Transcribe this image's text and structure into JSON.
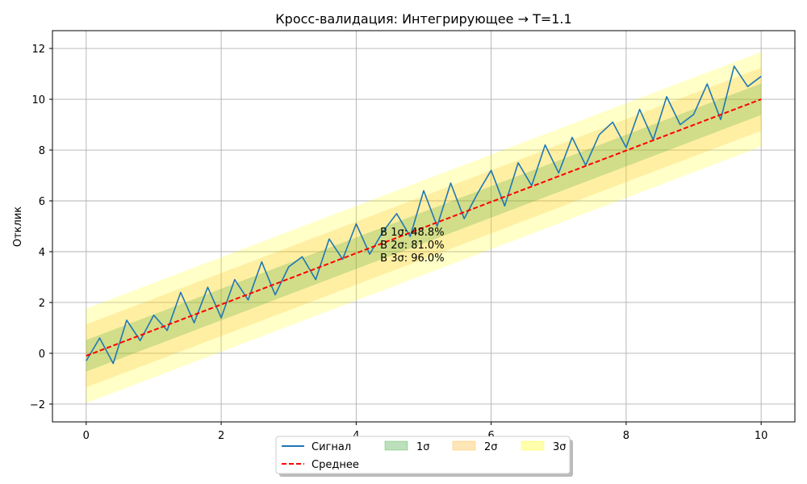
{
  "chart_data": {
    "type": "line",
    "title": "Кросс-валидация: Интегрирующее → T=1.1",
    "xlabel": "",
    "ylabel": "Отклик",
    "xlim": [
      -0.5,
      10.5
    ],
    "ylim": [
      -2.7,
      12.7
    ],
    "xticks": [
      0,
      2,
      4,
      6,
      8,
      10
    ],
    "yticks": [
      -2,
      0,
      2,
      4,
      6,
      8,
      10,
      12
    ],
    "grid": true,
    "legend_position": "bottom-center",
    "sigma": 0.62,
    "mean_line": {
      "x_start": 0,
      "x_end": 10,
      "y_start": -0.1,
      "y_end": 10.0
    },
    "series": [
      {
        "name": "Сигнал",
        "color": "#1f77b4",
        "style": "solid",
        "x": [
          0,
          0.2,
          0.4,
          0.6,
          0.8,
          1.0,
          1.2,
          1.4,
          1.6,
          1.8,
          2.0,
          2.2,
          2.4,
          2.6,
          2.8,
          3.0,
          3.2,
          3.4,
          3.6,
          3.8,
          4.0,
          4.2,
          4.4,
          4.6,
          4.8,
          5.0,
          5.2,
          5.4,
          5.6,
          5.8,
          6.0,
          6.2,
          6.4,
          6.6,
          6.8,
          7.0,
          7.2,
          7.4,
          7.6,
          7.8,
          8.0,
          8.2,
          8.4,
          8.6,
          8.8,
          9.0,
          9.2,
          9.4,
          9.6,
          9.8,
          10.0
        ],
        "y": [
          -0.3,
          0.6,
          -0.4,
          1.3,
          0.5,
          1.5,
          0.9,
          2.4,
          1.2,
          2.6,
          1.4,
          2.9,
          2.1,
          3.6,
          2.3,
          3.4,
          3.8,
          2.9,
          4.5,
          3.7,
          5.1,
          3.9,
          4.8,
          5.5,
          4.6,
          6.4,
          5.0,
          6.7,
          5.3,
          6.3,
          7.2,
          5.8,
          7.5,
          6.6,
          8.2,
          7.1,
          8.5,
          7.4,
          8.6,
          9.1,
          8.1,
          9.6,
          8.4,
          10.1,
          9.0,
          9.4,
          10.6,
          9.2,
          11.3,
          10.5,
          10.9
        ]
      },
      {
        "name": "Среднее",
        "color": "#ff0000",
        "style": "dashed"
      }
    ],
    "bands": [
      {
        "name": "1σ",
        "k": 1,
        "color": "#2ca02c",
        "opacity": 0.22
      },
      {
        "name": "2σ",
        "k": 2,
        "color": "#ffa500",
        "opacity": 0.18
      },
      {
        "name": "3σ",
        "k": 3,
        "color": "#ffff00",
        "opacity": 0.22
      }
    ],
    "annotations": [
      "В 1σ: 48.8%",
      "В 2σ: 81.0%",
      "В 3σ: 96.0%"
    ],
    "annotation_anchor": {
      "x": 4.5,
      "y": 4.7
    }
  }
}
